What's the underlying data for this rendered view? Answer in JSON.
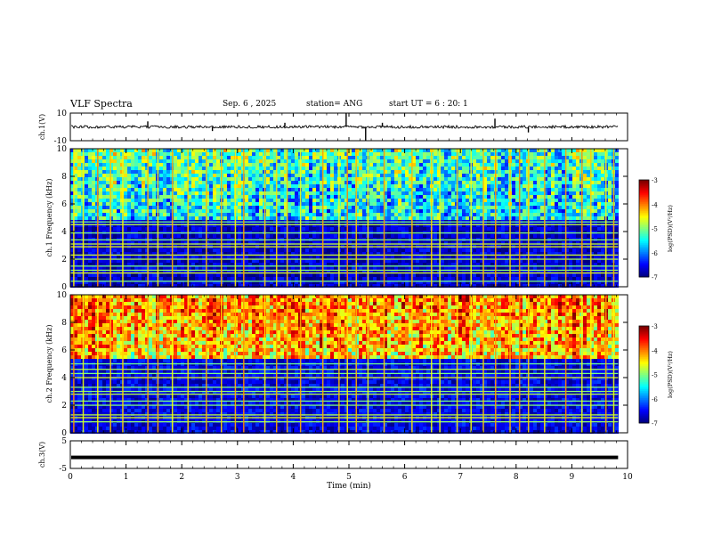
{
  "header": {
    "title": "VLF Spectra",
    "date": "Sep. 6 , 2025",
    "station": "station= ANG",
    "start": "start UT = 6 : 20: 1"
  },
  "chart_data": {
    "type": "heatmap",
    "title": "VLF Spectra",
    "xlabel": "Time (min)",
    "xlim": [
      0,
      10
    ],
    "xticks": [
      "0",
      "1",
      "2",
      "3",
      "4",
      "5",
      "6",
      "7",
      "8",
      "9",
      "10"
    ],
    "data_end_min": 9.83,
    "panels": [
      {
        "name": "ch1-waveform",
        "type": "line",
        "ylabel": "ch.1(V)",
        "ylim": [
          -10,
          10
        ],
        "yticks": [
          "10",
          "-10"
        ],
        "baseline_v": 0,
        "noise_amplitude_v": 1,
        "spikes": [
          {
            "t": 1.39,
            "v": 4
          },
          {
            "t": 3.85,
            "v": 3
          },
          {
            "t": 4.95,
            "v": 10
          },
          {
            "t": 5.3,
            "v": -10
          },
          {
            "t": 5.6,
            "v": 3
          },
          {
            "t": 7.62,
            "v": 6
          },
          {
            "t": 8.22,
            "v": -4
          },
          {
            "t": 2.55,
            "v": -3
          }
        ]
      },
      {
        "name": "ch1-spectrogram",
        "type": "heatmap",
        "ylabel": "ch.1 Frequency (kHz)",
        "ylim": [
          0,
          10
        ],
        "yticks": [
          "0",
          "2",
          "4",
          "6",
          "8",
          "10"
        ],
        "colorbar": {
          "label": "log(PSD)(V²/Hz)",
          "range": [
            -7,
            -3
          ],
          "ticks": [
            "-3",
            "-4",
            "-5",
            "-6",
            "-7"
          ]
        },
        "low_band_khz": [
          0,
          4.9
        ],
        "high_band_khz": [
          4.9,
          10
        ],
        "high_band_level": -5.6,
        "low_band_level": -6.7,
        "tone_lines_khz": [
          0.4,
          1.0,
          1.2,
          1.5,
          2.0,
          2.3,
          2.9,
          3.1,
          3.4,
          3.9,
          4.5,
          4.7
        ],
        "burst_times_min": [
          0.05,
          0.22,
          0.48,
          0.71,
          0.93,
          1.38,
          1.56,
          1.82,
          2.1,
          2.43,
          2.7,
          2.95,
          3.1,
          3.48,
          3.69,
          3.88,
          4.12,
          4.52,
          4.81,
          4.96,
          5.12,
          5.33,
          5.62,
          6.12,
          6.47,
          6.62,
          6.93,
          7.18,
          7.4,
          7.62,
          7.88,
          8.05,
          8.21,
          8.5,
          8.88,
          9.17,
          9.33,
          9.6,
          9.74
        ]
      },
      {
        "name": "ch2-spectrogram",
        "type": "heatmap",
        "ylabel": "ch.2 Frequency (kHz)",
        "ylim": [
          0,
          10
        ],
        "yticks": [
          "0",
          "2",
          "4",
          "6",
          "8",
          "10"
        ],
        "colorbar": {
          "label": "log(PSD)(V²/Hz)",
          "range": [
            -7,
            -3
          ],
          "ticks": [
            "-3",
            "-4",
            "-5",
            "-6",
            "-7"
          ]
        },
        "low_band_khz": [
          0,
          5.6
        ],
        "high_band_khz": [
          5.6,
          10
        ],
        "high_band_level": -4.3,
        "low_band_level": -6.6,
        "tone_lines_khz": [
          0.8,
          1.1,
          1.3,
          2.0,
          2.3,
          2.8,
          3.0,
          3.3,
          4.0,
          4.3,
          4.6,
          5.0
        ],
        "burst_times_min": [
          0.05,
          0.22,
          0.48,
          0.71,
          0.93,
          1.38,
          1.56,
          1.82,
          2.1,
          2.43,
          2.7,
          2.95,
          3.1,
          3.48,
          3.69,
          3.88,
          4.12,
          4.52,
          4.81,
          4.96,
          5.12,
          5.33,
          5.62,
          6.12,
          6.47,
          6.62,
          6.93,
          7.18,
          7.4,
          7.62,
          7.88,
          8.05,
          8.21,
          8.5,
          8.88,
          9.17,
          9.33,
          9.6,
          9.74
        ]
      },
      {
        "name": "ch3-waveform",
        "type": "line",
        "ylabel": "ch.3(V)",
        "ylim": [
          -5,
          5
        ],
        "yticks": [
          "5",
          "-5"
        ],
        "value_v": -1.0
      }
    ]
  }
}
